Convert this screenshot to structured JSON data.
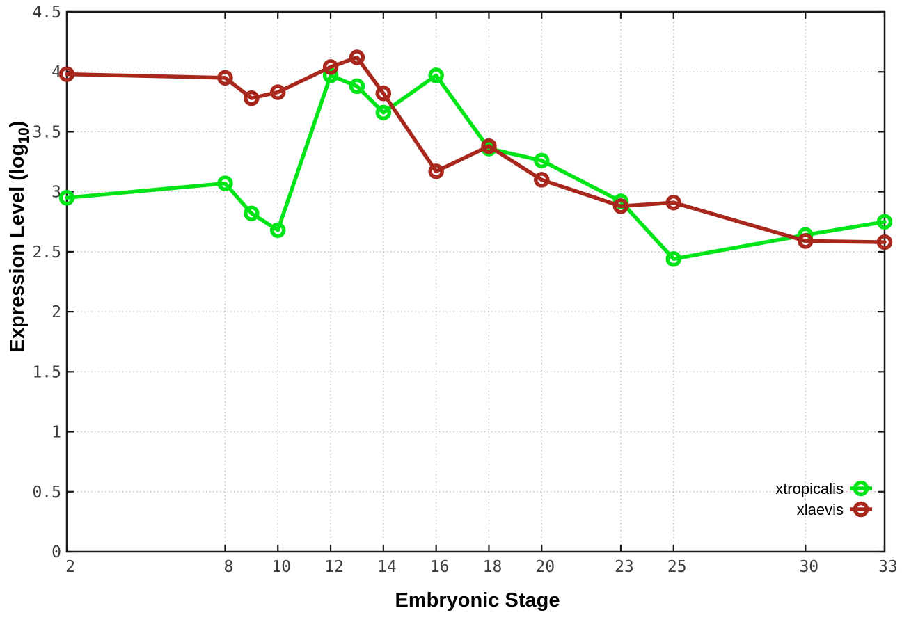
{
  "chart_data": {
    "type": "line",
    "x": [
      2,
      8,
      9,
      10,
      12,
      13,
      14,
      16,
      18,
      20,
      23,
      25,
      30,
      33
    ],
    "series": [
      {
        "name": "xtropicalis",
        "color": "#00e418",
        "marker": "open-circle",
        "values": [
          2.95,
          3.07,
          2.82,
          2.68,
          3.97,
          3.88,
          3.66,
          3.97,
          3.36,
          3.26,
          2.92,
          2.44,
          2.64,
          2.75
        ]
      },
      {
        "name": "xlaevis",
        "color": "#a8281e",
        "marker": "open-circle",
        "values": [
          3.98,
          3.95,
          3.78,
          3.83,
          4.04,
          4.12,
          3.82,
          3.17,
          3.38,
          3.1,
          2.88,
          2.91,
          2.59,
          2.58
        ]
      }
    ],
    "title": "",
    "xlabel": "Embryonic Stage",
    "ylabel": "Expression Level (log10)",
    "ylabel_parts": [
      "Expression Level (log",
      "10",
      ")"
    ],
    "xlim": [
      2,
      33
    ],
    "ylim": [
      0,
      4.5
    ],
    "xticks": [
      2,
      8,
      10,
      12,
      14,
      16,
      18,
      20,
      23,
      25,
      30,
      33
    ],
    "yticks": [
      0,
      0.5,
      1,
      1.5,
      2,
      2.5,
      3,
      3.5,
      4,
      4.5
    ],
    "grid": true,
    "grid_style": "dotted",
    "grid_color": "#b4b4b4",
    "border_color": "#1a1a1a",
    "tick_label_color": "#3d3d3d",
    "legend_position": "bottom-right"
  }
}
